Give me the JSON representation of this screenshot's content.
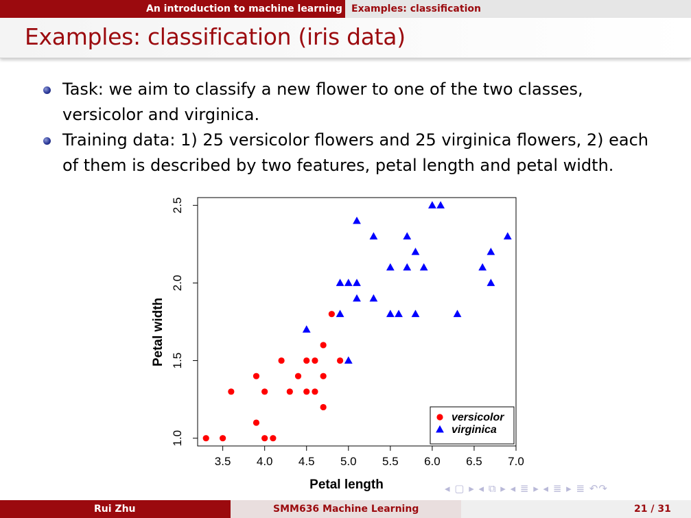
{
  "header": {
    "section_active": "An introduction to machine learning",
    "subsection": "Examples: classification"
  },
  "slide": {
    "title": "Examples: classification (iris data)",
    "bullets": [
      "Task: we aim to classify a new flower to one of the two classes, versicolor and virginica.",
      "Training data: 1) 25 versicolor flowers and 25 virginica flowers, 2) each of them is described by two features, petal length and petal width."
    ]
  },
  "chart_data": {
    "type": "scatter",
    "title": "",
    "xlabel": "Petal length",
    "ylabel": "Petal width",
    "xlim": [
      3.2,
      7.0
    ],
    "ylim": [
      0.95,
      2.55
    ],
    "xticks": [
      "3.5",
      "4.0",
      "4.5",
      "5.0",
      "5.5",
      "6.0",
      "6.5",
      "7.0"
    ],
    "yticks": [
      "1.0",
      "1.5",
      "2.0",
      "2.5"
    ],
    "legend_position": "bottom-right",
    "grid": false,
    "series": [
      {
        "name": "versicolor",
        "marker": "circle",
        "color": "#ff0000",
        "points": [
          [
            3.3,
            1.0
          ],
          [
            3.5,
            1.0
          ],
          [
            4.0,
            1.0
          ],
          [
            4.1,
            1.0
          ],
          [
            3.9,
            1.1
          ],
          [
            3.6,
            1.3
          ],
          [
            4.0,
            1.3
          ],
          [
            4.3,
            1.3
          ],
          [
            4.5,
            1.3
          ],
          [
            4.6,
            1.3
          ],
          [
            4.7,
            1.2
          ],
          [
            3.9,
            1.4
          ],
          [
            4.4,
            1.4
          ],
          [
            4.7,
            1.4
          ],
          [
            4.2,
            1.5
          ],
          [
            4.5,
            1.5
          ],
          [
            4.6,
            1.5
          ],
          [
            4.9,
            1.5
          ],
          [
            4.7,
            1.6
          ],
          [
            4.8,
            1.8
          ]
        ]
      },
      {
        "name": "virginica",
        "marker": "triangle",
        "color": "#0000ff",
        "points": [
          [
            4.5,
            1.7
          ],
          [
            5.0,
            1.5
          ],
          [
            4.9,
            1.8
          ],
          [
            5.5,
            1.8
          ],
          [
            5.6,
            1.8
          ],
          [
            5.8,
            1.8
          ],
          [
            6.3,
            1.8
          ],
          [
            5.1,
            1.9
          ],
          [
            5.3,
            1.9
          ],
          [
            4.9,
            2.0
          ],
          [
            5.0,
            2.0
          ],
          [
            5.1,
            2.0
          ],
          [
            6.7,
            2.0
          ],
          [
            5.5,
            2.1
          ],
          [
            5.7,
            2.1
          ],
          [
            5.9,
            2.1
          ],
          [
            6.6,
            2.1
          ],
          [
            5.8,
            2.2
          ],
          [
            6.7,
            2.2
          ],
          [
            5.3,
            2.3
          ],
          [
            5.7,
            2.3
          ],
          [
            6.9,
            2.3
          ],
          [
            5.1,
            2.4
          ],
          [
            6.0,
            2.5
          ],
          [
            6.1,
            2.5
          ]
        ]
      }
    ]
  },
  "nav": {
    "symbols": "◂ ▢ ▸ ◂ ⧉ ▸ ◂ ≣ ▸ ◂ ≣ ▸   ≣   ↶↷"
  },
  "footer": {
    "author": "Rui Zhu",
    "course": "SMM636 Machine Learning",
    "page": "21 / 31"
  }
}
